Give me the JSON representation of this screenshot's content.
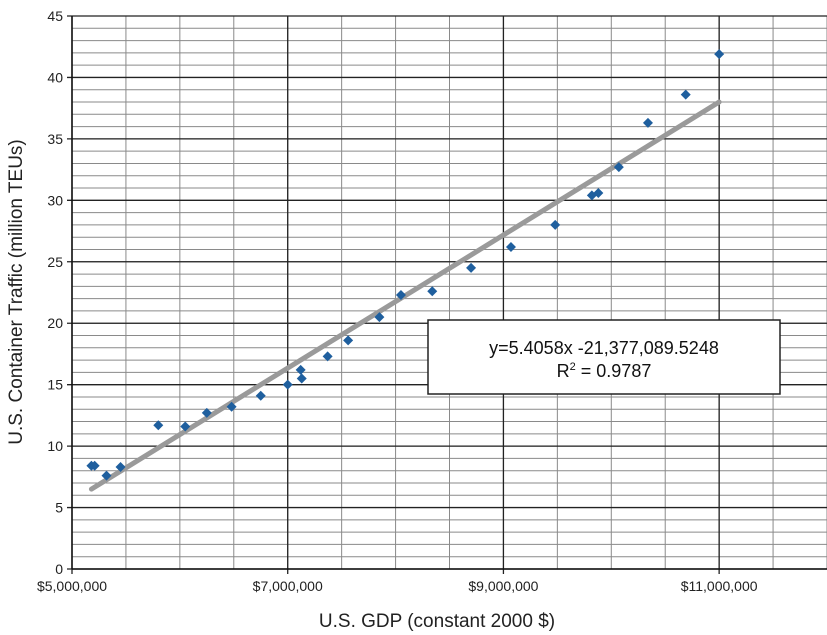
{
  "chart_data": {
    "type": "scatter",
    "title": "",
    "xlabel": "U.S. GDP (constant 2000 $)",
    "ylabel": "U.S. Container Traffic (million TEUs)",
    "xlim": [
      5000000,
      12000000
    ],
    "ylim": [
      0,
      45
    ],
    "x_ticks": [
      5000000,
      7000000,
      9000000,
      11000000
    ],
    "x_tick_labels": [
      "$5,000,000",
      "$7,000,000",
      "$9,000,000",
      "$11,000,000"
    ],
    "y_ticks": [
      0,
      5,
      10,
      15,
      20,
      25,
      30,
      35,
      40,
      45
    ],
    "y_tick_labels": [
      "0",
      "5",
      "10",
      "15",
      "20",
      "25",
      "30",
      "35",
      "40",
      "45"
    ],
    "grid": true,
    "minor_y_step": 1,
    "minor_x_step": 500000,
    "colors": {
      "points": "#1f5f9e",
      "trendline": "#9a9a9a",
      "grid_major": "#222222",
      "grid_minor": "#8a8a8a"
    },
    "series": [
      {
        "points": [
          [
            5180000,
            8.4
          ],
          [
            5210000,
            8.4
          ],
          [
            5320000,
            7.6
          ],
          [
            5450000,
            8.3
          ],
          [
            5800000,
            11.7
          ],
          [
            6050000,
            11.6
          ],
          [
            6250000,
            12.7
          ],
          [
            6480000,
            13.2
          ],
          [
            6750000,
            14.1
          ],
          [
            7000000,
            15.0
          ],
          [
            7120000,
            16.2
          ],
          [
            7130000,
            15.5
          ],
          [
            7370000,
            17.3
          ],
          [
            7560000,
            18.6
          ],
          [
            7850000,
            20.5
          ],
          [
            8050000,
            22.3
          ],
          [
            8340000,
            22.6
          ],
          [
            8700000,
            24.5
          ],
          [
            9070000,
            26.2
          ],
          [
            9480000,
            28.0
          ],
          [
            9820000,
            30.4
          ],
          [
            9880000,
            30.6
          ],
          [
            10070000,
            32.7
          ],
          [
            10340000,
            36.3
          ],
          [
            10690000,
            38.6
          ],
          [
            11000000,
            41.9
          ]
        ]
      }
    ],
    "trendline": {
      "x_start": 5180000,
      "x_end": 11000000,
      "y_start": 6.5,
      "y_end": 38.0
    },
    "annotation": {
      "equation": "y=5.4058x -21,377,089.5248",
      "r2_prefix": "R",
      "r2_sup": "2",
      "r2_value": " = 0.9787"
    }
  }
}
